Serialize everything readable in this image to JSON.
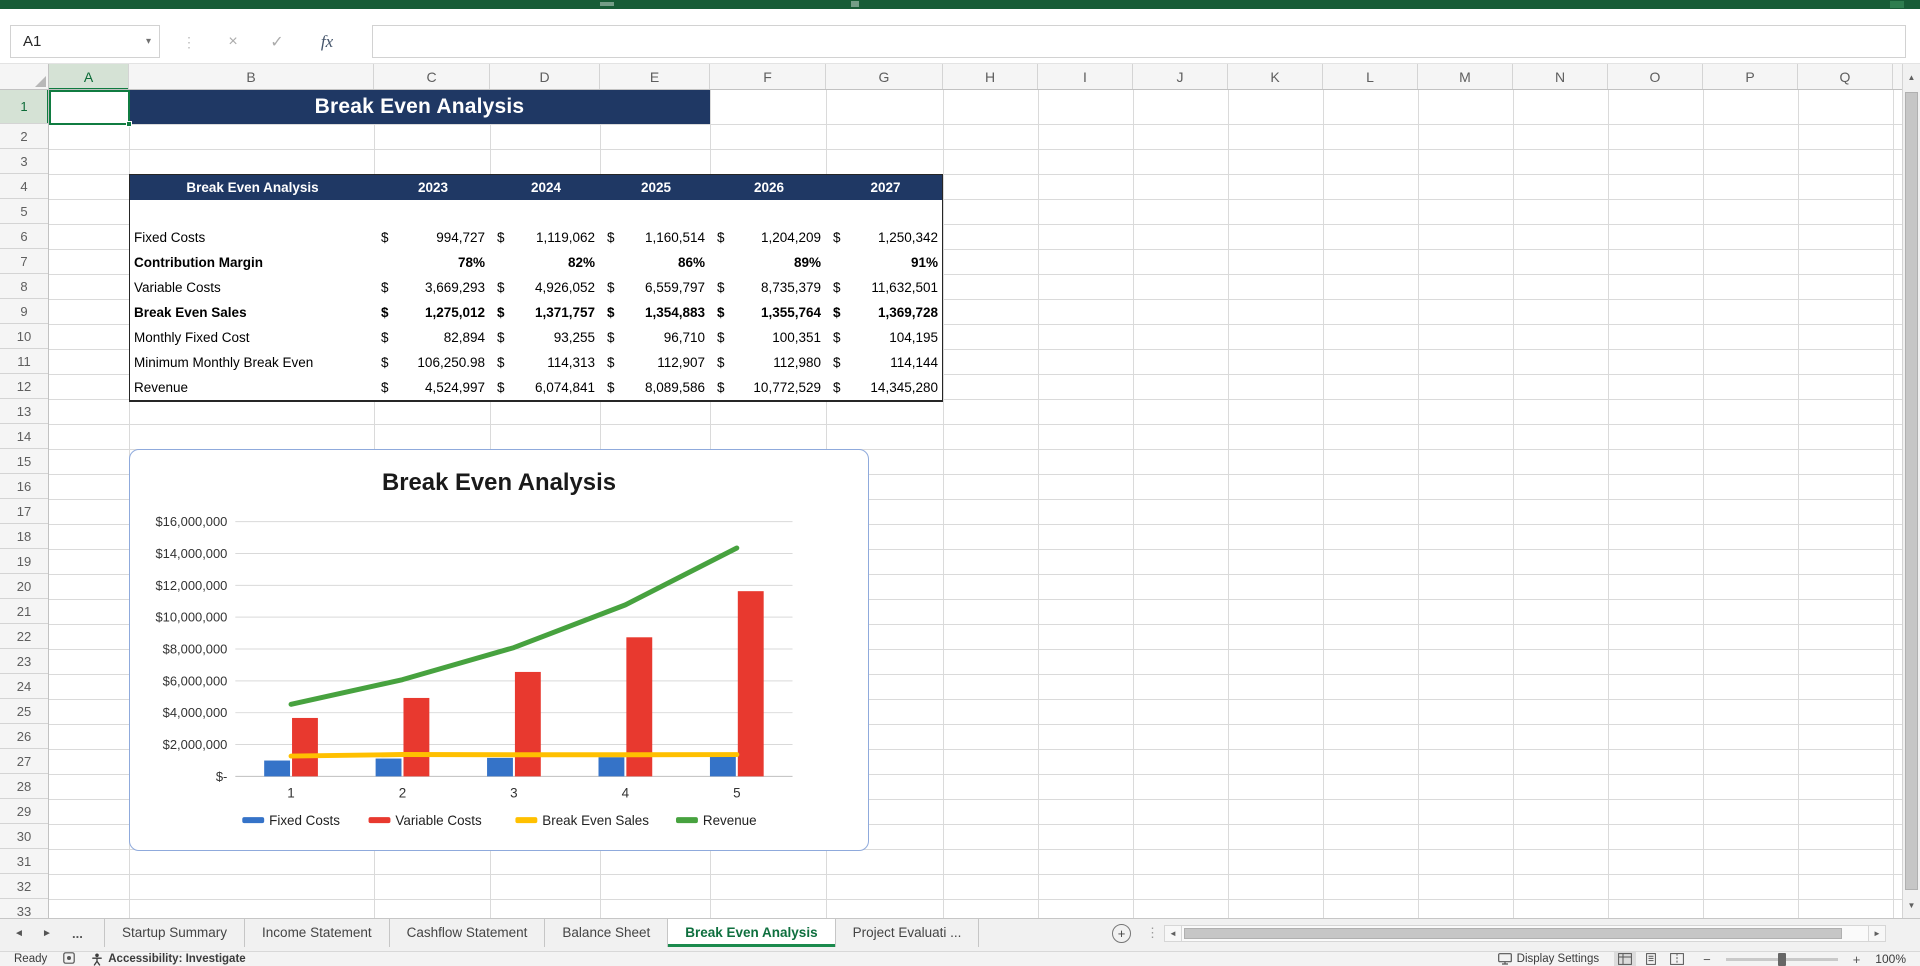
{
  "formula_bar": {
    "name_box_value": "A1",
    "cancel_icon": "×",
    "enter_icon": "✓",
    "fx_icon": "fx",
    "formula_value": ""
  },
  "grid": {
    "columns": [
      "A",
      "B",
      "C",
      "D",
      "E",
      "F",
      "G",
      "H",
      "I",
      "J",
      "K",
      "L",
      "M",
      "N",
      "O",
      "P",
      "Q"
    ],
    "row_count": 33,
    "selected_cell": "A1"
  },
  "sheet_title": "Break Even Analysis",
  "table": {
    "title": "Break Even Analysis",
    "years": [
      "2023",
      "2024",
      "2025",
      "2026",
      "2027"
    ],
    "rows": [
      {
        "label": "Fixed Costs",
        "bold": false,
        "currency": true,
        "values": [
          "994,727",
          "1,119,062",
          "1,160,514",
          "1,204,209",
          "1,250,342"
        ]
      },
      {
        "label": "Contribution Margin",
        "bold": true,
        "currency": false,
        "values": [
          "78%",
          "82%",
          "86%",
          "89%",
          "91%"
        ]
      },
      {
        "label": "Variable Costs",
        "bold": false,
        "currency": true,
        "values": [
          "3,669,293",
          "4,926,052",
          "6,559,797",
          "8,735,379",
          "11,632,501"
        ]
      },
      {
        "label": "Break Even Sales",
        "bold": true,
        "currency": true,
        "values": [
          "1,275,012",
          "1,371,757",
          "1,354,883",
          "1,355,764",
          "1,369,728"
        ]
      },
      {
        "label": "Monthly Fixed Cost",
        "bold": false,
        "currency": true,
        "values": [
          "82,894",
          "93,255",
          "96,710",
          "100,351",
          "104,195"
        ]
      },
      {
        "label": "Minimum Monthly Break Even",
        "bold": false,
        "currency": true,
        "values": [
          "106,250.98",
          "114,313",
          "112,907",
          "112,980",
          "114,144"
        ]
      },
      {
        "label": "Revenue",
        "bold": false,
        "currency": true,
        "values": [
          "4,524,997",
          "6,074,841",
          "8,089,586",
          "10,772,529",
          "14,345,280"
        ]
      }
    ]
  },
  "chart_data": {
    "type": "combo",
    "title": "Break Even Analysis",
    "categories": [
      "1",
      "2",
      "3",
      "4",
      "5"
    ],
    "series": [
      {
        "name": "Fixed Costs",
        "chart_type": "bar",
        "color": "#3573C8",
        "values": [
          994727,
          1119062,
          1160514,
          1204209,
          1250342
        ]
      },
      {
        "name": "Variable Costs",
        "chart_type": "bar",
        "color": "#E8392F",
        "values": [
          3669293,
          4926052,
          6559797,
          8735379,
          11632501
        ]
      },
      {
        "name": "Break Even Sales",
        "chart_type": "line",
        "color": "#FFC000",
        "values": [
          1275012,
          1371757,
          1354883,
          1355764,
          1369728
        ]
      },
      {
        "name": "Revenue",
        "chart_type": "line",
        "color": "#47A23F",
        "values": [
          4524997,
          6074841,
          8089586,
          10772529,
          14345280
        ]
      }
    ],
    "ylim": [
      0,
      16000000
    ],
    "ytick_step": 2000000,
    "ytick_labels": [
      "$-",
      "$2,000,000",
      "$4,000,000",
      "$6,000,000",
      "$8,000,000",
      "$10,000,000",
      "$12,000,000",
      "$14,000,000",
      "$16,000,000"
    ],
    "grid": true,
    "legend_position": "bottom"
  },
  "sheet_tabs": {
    "prev_icon": "◄",
    "next_icon": "►",
    "overflow_label": "...",
    "add_sheet_icon": "+",
    "tabs": [
      {
        "label": "Startup Summary",
        "active": false
      },
      {
        "label": "Income Statement",
        "active": false
      },
      {
        "label": "Cashflow Statement",
        "active": false
      },
      {
        "label": "Balance Sheet",
        "active": false
      },
      {
        "label": "Break Even Analysis",
        "active": true
      },
      {
        "label": "Project Evaluati ...",
        "active": false
      }
    ]
  },
  "scrollbars": {
    "up_icon": "▲",
    "down_icon": "▼",
    "left_icon": "◄",
    "right_icon": "►"
  },
  "status_bar": {
    "ready": "Ready",
    "accessibility": "Accessibility: Investigate",
    "display_settings": "Display Settings",
    "zoom_out_icon": "−",
    "zoom_in_icon": "+",
    "zoom_level": "100%"
  },
  "colors": {
    "accent_green": "#107C41",
    "header_navy": "#1F3864",
    "chart_border": "#8FAADC",
    "titlebar_green": "#185C37"
  }
}
